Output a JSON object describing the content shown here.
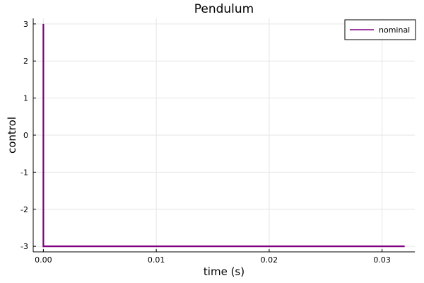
{
  "chart_data": {
    "type": "line",
    "title": "Pendulum",
    "xlabel": "time (s)",
    "ylabel": "control",
    "xlim": [
      -0.0009,
      0.0329
    ],
    "ylim": [
      -3.15,
      3.15
    ],
    "xticks": [
      0.0,
      0.01,
      0.02,
      0.03
    ],
    "xtick_labels": [
      "0.00",
      "0.01",
      "0.02",
      "0.03"
    ],
    "yticks": [
      -3,
      -2,
      -1,
      0,
      1,
      2,
      3
    ],
    "ytick_labels": [
      "-3",
      "-2",
      "-1",
      "0",
      "1",
      "2",
      "3"
    ],
    "grid": true,
    "legend_position": "top-right",
    "series": [
      {
        "name": "nominal",
        "color": "#800080",
        "x": [
          0.0,
          0.0,
          0.032
        ],
        "y": [
          3.0,
          -3.0,
          -3.0
        ]
      }
    ]
  }
}
